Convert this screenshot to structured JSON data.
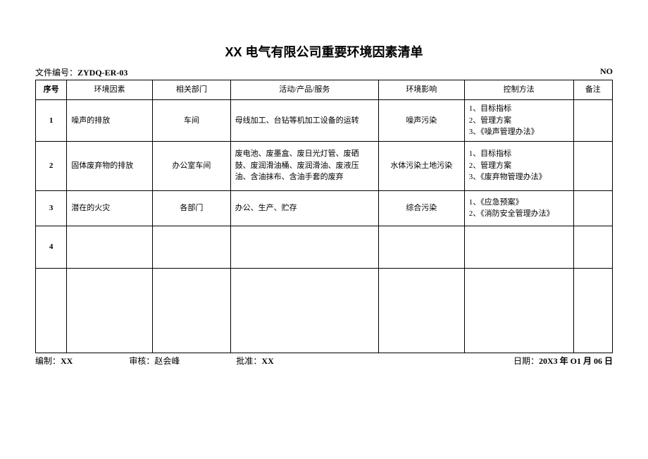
{
  "title": "XX 电气有限公司重要环境因素清单",
  "doc_no_label": "文件编号：",
  "doc_no": "ZYDQ-ER-03",
  "page_label": "NO",
  "headers": {
    "seq": "序号",
    "factor": "环境因素",
    "dept": "相关部门",
    "activity": "活动/产品/服务",
    "impact": "环境影响",
    "control": "控制方法",
    "remark": "备注"
  },
  "rows": [
    {
      "seq": "1",
      "factor": "噪声的排放",
      "dept": "车间",
      "activity": "母线加工、台钻等机加工设备的运转",
      "impact": "噪声污染",
      "control": "1、目标指标\n2、管理方案\n3、《噪声管理办法》",
      "remark": ""
    },
    {
      "seq": "2",
      "factor": "固体废弃物的排放",
      "dept": "办公室车间",
      "activity": "废电池、废墨盒、废日光灯管、废硒鼓、废润滑油桶、废润滑油、废液压油、含油抹布、含油手套的废弃",
      "impact": "水体污染土地污染",
      "control": "1、目标指标\n2、管理方案\n3、《废弃物管理办法》",
      "remark": ""
    },
    {
      "seq": "3",
      "factor": "潜在的火灾",
      "dept": "各部门",
      "activity": "办公、生产、贮存",
      "impact": "综合污染",
      "control": "1、《应急预案》\n2、《消防安全管理办法》",
      "remark": ""
    },
    {
      "seq": "4",
      "factor": "",
      "dept": "",
      "activity": "",
      "impact": "",
      "control": "",
      "remark": ""
    }
  ],
  "footer": {
    "prepared_label": "编制：",
    "prepared": "XX",
    "reviewed_label": "审核：",
    "reviewed": "赵会峰",
    "approved_label": "批准：",
    "approved": "XX",
    "date_label": "日期：",
    "date": "20X3 年 O1 月 06 日"
  }
}
